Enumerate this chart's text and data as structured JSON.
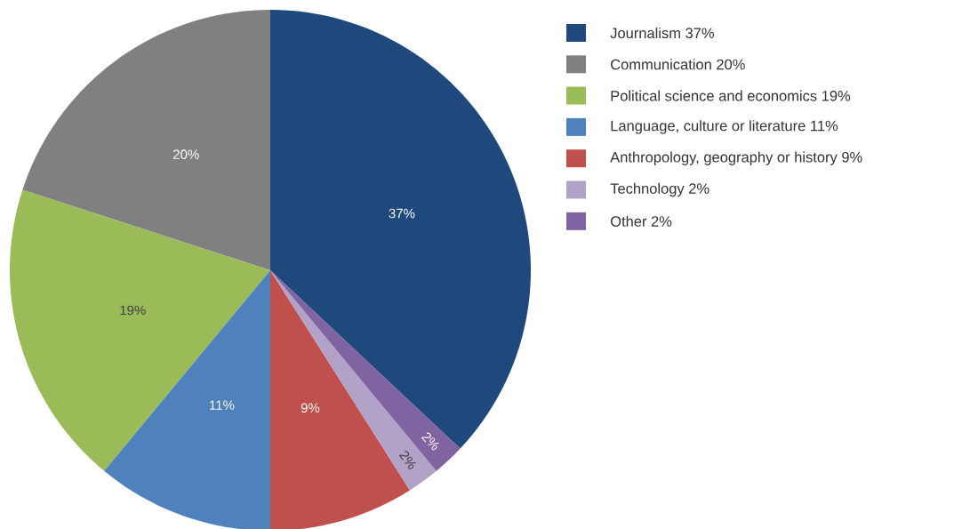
{
  "chart_data": {
    "type": "pie",
    "categories": [
      "Journalism 37%",
      "Communication 20%",
      "Political science and economics 19%",
      "Language, culture or literature 11%",
      "Anthropology, geography or history 9%",
      "Technology 2%",
      "Other 2%"
    ],
    "values": [
      37,
      20,
      19,
      11,
      9,
      2,
      2
    ],
    "value_labels": [
      "37%",
      "20%",
      "19%",
      "11%",
      "9%",
      "2%",
      "2%"
    ],
    "colors": [
      "#1f497d",
      "#808080",
      "#9bbb59",
      "#4f81bd",
      "#c0504d",
      "#b3a2c7",
      "#8064a2"
    ],
    "legend": "top right"
  }
}
